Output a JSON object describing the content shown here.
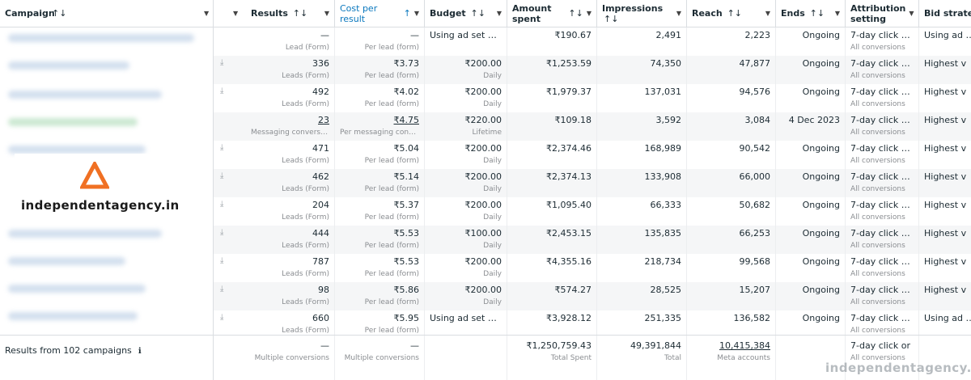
{
  "header": {
    "campaign": "Campaign",
    "results": "Results",
    "cost_per_result": "Cost per result",
    "budget": "Budget",
    "amount_spent": "Amount spent",
    "impressions": "Impressions",
    "reach": "Reach",
    "ends": "Ends",
    "attribution": "Attribution setting",
    "bid_strategy": "Bid strategy",
    "sort_glyph": "↑↓",
    "active_sort_glyph": "↑",
    "dropdown_glyph": "▼"
  },
  "rows": [
    {
      "results": "—",
      "results_sub": "Lead (Form)",
      "cpr": "—",
      "cpr_sub": "Per lead (form)",
      "budget": "Using ad set bu...",
      "budget_sub": "",
      "spent": "₹190.67",
      "impr": "2,491",
      "reach": "2,223",
      "ends": "Ongoing",
      "attr": "7-day click or ...",
      "attr_sub": "All conversions",
      "bid": "Using ad set",
      "download": ""
    },
    {
      "results": "336",
      "results_sub": "Leads (Form)",
      "cpr": "₹3.73",
      "cpr_sub": "Per lead (form)",
      "budget": "₹200.00",
      "budget_sub": "Daily",
      "spent": "₹1,253.59",
      "impr": "74,350",
      "reach": "47,877",
      "ends": "Ongoing",
      "attr": "7-day click or ...",
      "attr_sub": "All conversions",
      "bid": "Highest v",
      "download": "⤓"
    },
    {
      "results": "492",
      "results_sub": "Leads (Form)",
      "cpr": "₹4.02",
      "cpr_sub": "Per lead (form)",
      "budget": "₹200.00",
      "budget_sub": "Daily",
      "spent": "₹1,979.37",
      "impr": "137,031",
      "reach": "94,576",
      "ends": "Ongoing",
      "attr": "7-day click or ...",
      "attr_sub": "All conversions",
      "bid": "Highest v",
      "download": "⤓"
    },
    {
      "results": "23",
      "results_sub": "Messaging conversat...",
      "cpr": "₹4.75",
      "cpr_sub": "Per messaging conve...",
      "budget": "₹220.00",
      "budget_sub": "Lifetime",
      "spent": "₹109.18",
      "impr": "3,592",
      "reach": "3,084",
      "ends": "4 Dec 2023",
      "attr": "7-day click or ...",
      "attr_sub": "All conversions",
      "bid": "Highest v",
      "download": ""
    },
    {
      "results": "471",
      "results_sub": "Leads (Form)",
      "cpr": "₹5.04",
      "cpr_sub": "Per lead (form)",
      "budget": "₹200.00",
      "budget_sub": "Daily",
      "spent": "₹2,374.46",
      "impr": "168,989",
      "reach": "90,542",
      "ends": "Ongoing",
      "attr": "7-day click or ...",
      "attr_sub": "All conversions",
      "bid": "Highest v",
      "download": "⤓"
    },
    {
      "results": "462",
      "results_sub": "Leads (Form)",
      "cpr": "₹5.14",
      "cpr_sub": "Per lead (form)",
      "budget": "₹200.00",
      "budget_sub": "Daily",
      "spent": "₹2,374.13",
      "impr": "133,908",
      "reach": "66,000",
      "ends": "Ongoing",
      "attr": "7-day click or ...",
      "attr_sub": "All conversions",
      "bid": "Highest v",
      "download": "⤓"
    },
    {
      "results": "204",
      "results_sub": "Leads (Form)",
      "cpr": "₹5.37",
      "cpr_sub": "Per lead (form)",
      "budget": "₹200.00",
      "budget_sub": "Daily",
      "spent": "₹1,095.40",
      "impr": "66,333",
      "reach": "50,682",
      "ends": "Ongoing",
      "attr": "7-day click or ...",
      "attr_sub": "All conversions",
      "bid": "Highest v",
      "download": "⤓"
    },
    {
      "results": "444",
      "results_sub": "Leads (Form)",
      "cpr": "₹5.53",
      "cpr_sub": "Per lead (form)",
      "budget": "₹100.00",
      "budget_sub": "Daily",
      "spent": "₹2,453.15",
      "impr": "135,835",
      "reach": "66,253",
      "ends": "Ongoing",
      "attr": "7-day click or ...",
      "attr_sub": "All conversions",
      "bid": "Highest v",
      "download": "⤓"
    },
    {
      "results": "787",
      "results_sub": "Leads (Form)",
      "cpr": "₹5.53",
      "cpr_sub": "Per lead (form)",
      "budget": "₹200.00",
      "budget_sub": "Daily",
      "spent": "₹4,355.16",
      "impr": "218,734",
      "reach": "99,568",
      "ends": "Ongoing",
      "attr": "7-day click or ...",
      "attr_sub": "All conversions",
      "bid": "Highest v",
      "download": "⤓"
    },
    {
      "results": "98",
      "results_sub": "Leads (Form)",
      "cpr": "₹5.86",
      "cpr_sub": "Per lead (form)",
      "budget": "₹200.00",
      "budget_sub": "Daily",
      "spent": "₹574.27",
      "impr": "28,525",
      "reach": "15,207",
      "ends": "Ongoing",
      "attr": "7-day click or ...",
      "attr_sub": "All conversions",
      "bid": "Highest v",
      "download": "⤓"
    },
    {
      "results": "660",
      "results_sub": "Leads (Form)",
      "cpr": "₹5.95",
      "cpr_sub": "Per lead (form)",
      "budget": "Using ad set bu...",
      "budget_sub": "",
      "spent": "₹3,928.12",
      "impr": "251,335",
      "reach": "136,582",
      "ends": "Ongoing",
      "attr": "7-day click or ...",
      "attr_sub": "All conversions",
      "bid": "Using ad set",
      "download": "⤓"
    }
  ],
  "footer": {
    "label": "Results from 102 campaigns",
    "info_icon": "ℹ",
    "results": "—",
    "results_sub": "Multiple conversions",
    "cpr": "—",
    "cpr_sub": "Multiple conversions",
    "spent": "₹1,250,759.43",
    "spent_sub": "Total Spent",
    "impr": "49,391,844",
    "impr_sub": "Total",
    "reach": "10,415,384",
    "reach_sub": "Meta accounts",
    "attr": "7-day click or ...",
    "attr_sub": "All conversions"
  },
  "logo": {
    "text": "independentagency.in",
    "color": "#f07023"
  },
  "watermark": "independentagency.in"
}
